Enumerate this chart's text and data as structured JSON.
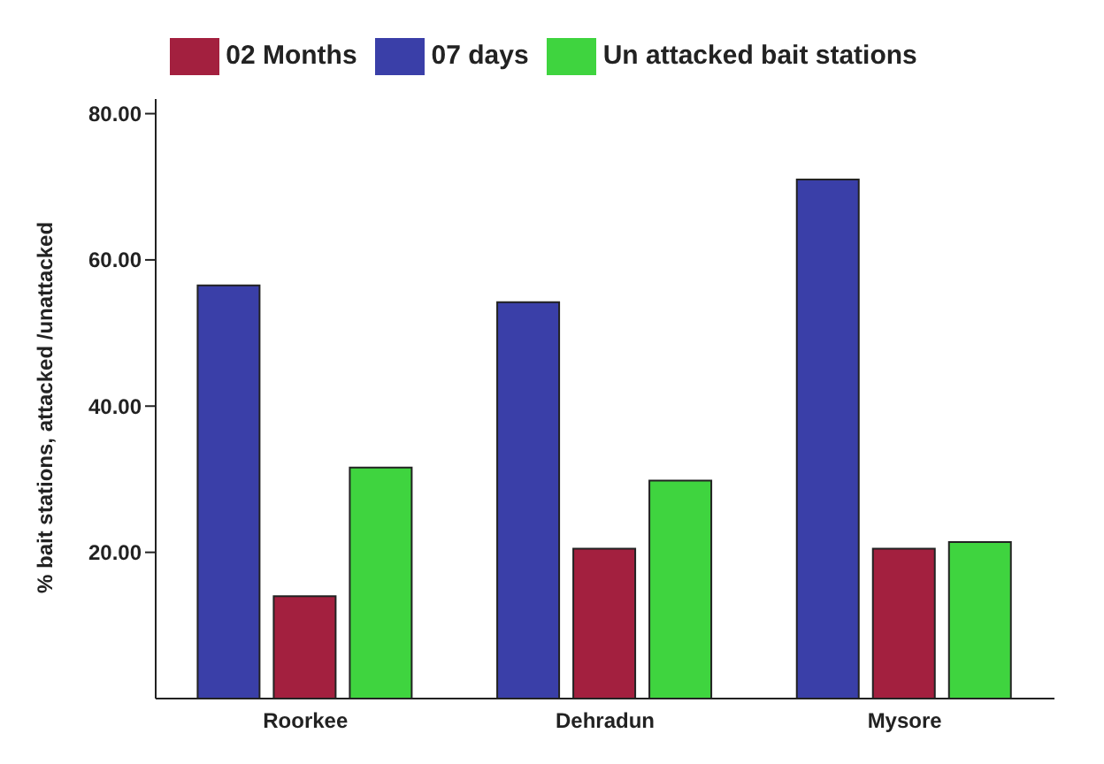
{
  "chart_data": {
    "type": "bar",
    "ylabel": "% bait stations, attacked /unattacked",
    "categories": [
      "Roorkee",
      "Dehradun",
      "Mysore"
    ],
    "series": [
      {
        "name": "07 days",
        "color": "#3a3fa8",
        "values": [
          56.5,
          54.2,
          71
        ]
      },
      {
        "name": "02 Months",
        "color": "#a3203f",
        "values": [
          14,
          20.5,
          20.5
        ]
      },
      {
        "name": "Un attacked bait stations",
        "color": "#3fd43f",
        "values": [
          31.6,
          29.8,
          21.4
        ]
      }
    ],
    "ylim": [
      0,
      82
    ],
    "yticks": [
      {
        "value": 20,
        "label": "20.00"
      },
      {
        "value": 40,
        "label": "40.00"
      },
      {
        "value": 60,
        "label": "60.00"
      },
      {
        "value": 80,
        "label": "80.00"
      }
    ],
    "grid": false,
    "legend": "top"
  }
}
